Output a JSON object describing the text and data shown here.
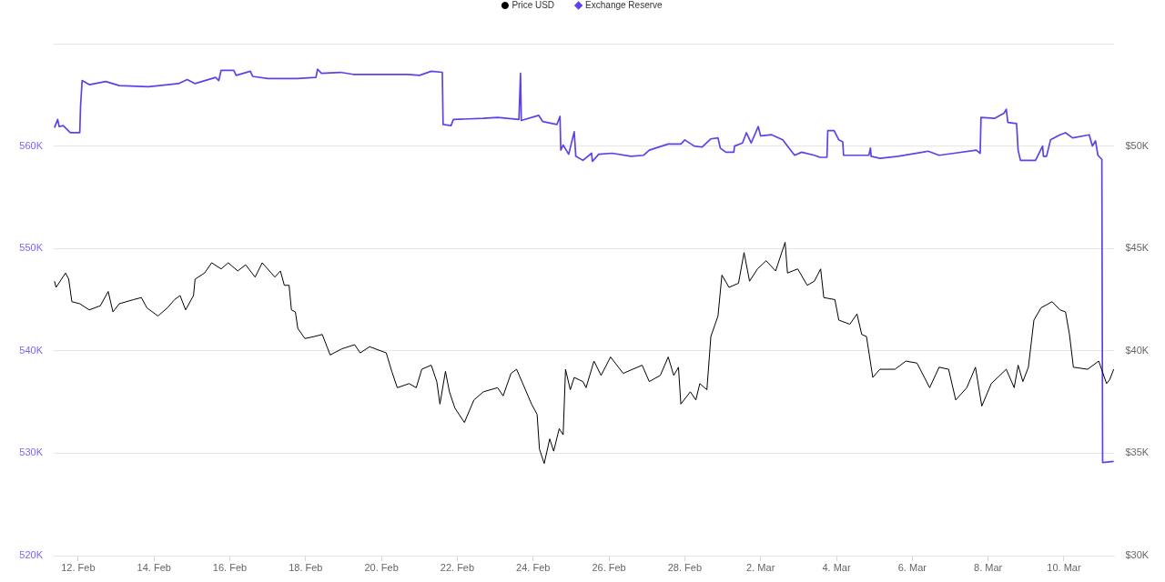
{
  "chart_data": {
    "type": "line",
    "legend": "top",
    "grid": "y",
    "xlim": [
      "--02-11T08:30",
      "--03-11T08:00"
    ],
    "xticks": [
      {
        "value": "--02-12",
        "label": "12. Feb"
      },
      {
        "value": "--02-14",
        "label": "14. Feb"
      },
      {
        "value": "--02-16",
        "label": "16. Feb"
      },
      {
        "value": "--02-18",
        "label": "18. Feb"
      },
      {
        "value": "--02-20",
        "label": "20. Feb"
      },
      {
        "value": "--02-22",
        "label": "22. Feb"
      },
      {
        "value": "--02-24",
        "label": "24. Feb"
      },
      {
        "value": "--02-26",
        "label": "26. Feb"
      },
      {
        "value": "--02-28",
        "label": "28. Feb"
      },
      {
        "value": "--03-02",
        "label": "2. Mar"
      },
      {
        "value": "--03-04",
        "label": "4. Mar"
      },
      {
        "value": "--03-06",
        "label": "6. Mar"
      },
      {
        "value": "--03-08",
        "label": "8. Mar"
      },
      {
        "value": "--03-10",
        "label": "10. Mar"
      }
    ],
    "ylim": [
      520000,
      570000
    ],
    "yticks": [
      {
        "value": 520000,
        "label": "520K"
      },
      {
        "value": 530000,
        "label": "530K"
      },
      {
        "value": 540000,
        "label": "540K"
      },
      {
        "value": 550000,
        "label": "550K"
      },
      {
        "value": 560000,
        "label": "560K"
      },
      {
        "value": 570000,
        "label": null
      }
    ],
    "y2lim": [
      30000,
      55000
    ],
    "y2ticks": [
      {
        "value": 30000,
        "label": "$30K"
      },
      {
        "value": 35000,
        "label": "$35K"
      },
      {
        "value": 40000,
        "label": "$40K"
      },
      {
        "value": 45000,
        "label": "$45K"
      },
      {
        "value": 50000,
        "label": "$50K"
      },
      {
        "value": 55000,
        "label": null
      }
    ],
    "series": [
      {
        "name": "Price USD",
        "color": "#000000",
        "axis": "y2",
        "x": [
          "--02-11T09:00",
          "--02-11T10:00",
          "--02-11T16:00",
          "--02-11T18:00",
          "--02-11T20:00",
          "--02-12T01:00",
          "--02-12T07:00",
          "--02-12T14:00",
          "--02-12T19:00",
          "--02-12T22:00",
          "--02-13T02:00",
          "--02-13T11:00",
          "--02-13T16:00",
          "--02-13T19:30",
          "--02-14T02:30",
          "--02-14T08:30",
          "--02-14T13:00",
          "--02-14T16:30",
          "--02-14T20:00",
          "--02-15T01:00",
          "--02-15T02:00",
          "--02-15T08:00",
          "--02-15T12:30",
          "--02-15T18:30",
          "--02-15T23:00",
          "--02-16T05:00",
          "--02-16T10:00",
          "--02-16T16:00",
          "--02-16T20:30",
          "--02-17T04:30",
          "--02-17T08:00",
          "--02-17T10:30",
          "--02-17T13:30",
          "--02-17T15:00",
          "--02-17T17:30",
          "--02-17T19:00",
          "--02-17T23:30",
          "--02-18T05:30",
          "--02-18T10:30",
          "--02-18T13:30",
          "--02-18T15:30",
          "--02-18T23:00",
          "--02-19T07:00",
          "--02-19T10:30",
          "--02-19T16:30",
          "--02-20T03:00",
          "--02-20T06:30",
          "--02-20T10:00",
          "--02-20T17:30",
          "--02-20T22:00",
          "--02-21T01:30",
          "--02-21T07:30",
          "--02-21T11:00",
          "--02-21T13:00",
          "--02-21T16:30",
          "--02-21T19:00",
          "--02-21T22:30",
          "--02-22T04:30",
          "--02-22T10:30",
          "--02-22T16:30",
          "--02-23T01:30",
          "--02-23T05:00",
          "--02-23T10:00",
          "--02-23T13:30",
          "--02-23T18:00",
          "--02-23T23:00",
          "--02-24T02:30",
          "--02-24T04:00",
          "--02-24T07:00",
          "--02-24T10:30",
          "--02-24T13:00",
          "--02-24T16:30",
          "--02-24T19:00",
          "--02-24T20:30",
          "--02-24T23:30",
          "--02-25T02:00",
          "--02-25T07:30",
          "--02-25T09:30",
          "--02-25T14:30",
          "--02-25T19:00",
          "--02-26T01:00",
          "--02-26T09:00",
          "--02-26T21:00",
          "--02-27T01:30",
          "--02-27T08:30",
          "--02-27T13:30",
          "--02-27T17:00",
          "--02-27T20:00",
          "--02-27T21:30",
          "--02-28T03:30",
          "--02-28T07:00",
          "--02-28T09:30",
          "--02-28T14:00",
          "--02-28T16:30",
          "--02-28T21:00",
          "--02-28T23:30",
          "--03-01T04:00",
          "--03-01T10:00",
          "--03-01T13:30",
          "--03-01T17:00",
          "--03-01T22:00",
          "--03-02T03:30",
          "--03-02T09:30",
          "--03-02T15:30",
          "--03-02T17:00",
          "--03-02T23:30",
          "--03-03T05:30",
          "--03-03T10:00",
          "--03-03T14:00",
          "--03-03T16:00",
          "--03-03T23:00",
          "--03-04T01:30",
          "--03-04T08:30",
          "--03-04T13:00",
          "--03-04T16:00",
          "--03-04T19:00",
          "--03-04T23:00",
          "--03-05T03:30",
          "--03-05T13:00",
          "--03-05T20:00",
          "--03-06T03:00",
          "--03-06T11:00",
          "--03-06T17:00",
          "--03-06T23:00",
          "--03-07T03:30",
          "--03-07T10:30",
          "--03-07T16:00",
          "--03-07T20:00",
          "--03-08T02:00",
          "--03-08T11:30",
          "--03-08T16:30",
          "--03-08T19:00",
          "--03-08T22:00",
          "--03-09T01:30",
          "--03-09T05:00",
          "--03-09T09:30",
          "--03-09T16:30",
          "--03-09T21:30",
          "--03-10T01:00",
          "--03-10T03:30",
          "--03-10T06:00",
          "--03-10T15:00",
          "--03-10T22:00",
          "--03-11T03:00",
          "--03-11T05:00",
          "--03-11T07:30"
        ],
        "values": [
          43400,
          43100,
          43800,
          43500,
          42400,
          42300,
          42000,
          42200,
          42900,
          41900,
          42300,
          42500,
          42600,
          42100,
          41700,
          42100,
          42500,
          42700,
          42000,
          42700,
          43500,
          43800,
          44300,
          44000,
          44300,
          43900,
          44200,
          43600,
          44300,
          43600,
          43900,
          43200,
          43200,
          42000,
          41900,
          41100,
          40600,
          40700,
          40800,
          40200,
          39800,
          40100,
          40300,
          39900,
          40200,
          39900,
          39000,
          38200,
          38400,
          38200,
          39100,
          39300,
          38500,
          37400,
          39000,
          38000,
          37200,
          36500,
          37600,
          38000,
          38200,
          37800,
          38900,
          39100,
          38300,
          37400,
          36900,
          35200,
          34500,
          35700,
          35100,
          36200,
          35900,
          39100,
          38100,
          38700,
          38500,
          38200,
          39500,
          38800,
          39700,
          38900,
          39300,
          38500,
          38800,
          39700,
          38800,
          39200,
          37400,
          38000,
          37600,
          38400,
          38100,
          40700,
          41700,
          43700,
          43100,
          43300,
          44800,
          43400,
          44000,
          44400,
          43900,
          45300,
          43800,
          44000,
          43200,
          43400,
          44000,
          42600,
          42500,
          41500,
          41300,
          41800,
          40800,
          40700,
          38700,
          39100,
          39100,
          39500,
          39400,
          38200,
          39200,
          39100,
          37600,
          38200,
          39200,
          37300,
          38400,
          39100,
          38200,
          39300,
          38500,
          39200,
          41500,
          42100,
          42400,
          42000,
          41900,
          40800,
          39200,
          39100,
          39500,
          38400,
          38600,
          39100
        ]
      },
      {
        "name": "Exchange Reserve",
        "color": "#5a44e8",
        "axis": "y",
        "x": [
          "--02-11T09:00",
          "--02-11T11:00",
          "--02-11T12:00",
          "--02-11T14:30",
          "--02-11T19:00",
          "--02-12T01:00",
          "--02-12T01:30",
          "--02-12T02:30",
          "--02-12T07:00",
          "--02-12T17:30",
          "--02-13T02:00",
          "--02-13T20:30",
          "--02-14T15:30",
          "--02-14T21:00",
          "--02-15T02:00",
          "--02-15T15:00",
          "--02-15T17:00",
          "--02-15T18:30",
          "--02-16T02:30",
          "--02-16T04:00",
          "--02-16T13:00",
          "--02-16T14:30",
          "--02-17T00:00",
          "--02-17T18:30",
          "--02-18T06:30",
          "--02-18T07:30",
          "--02-18T10:00",
          "--02-18T22:00",
          "--02-19T06:00",
          "--02-20T17:00",
          "--02-21T00:00",
          "--02-21T07:30",
          "--02-21T14:30",
          "--02-21T15:00",
          "--02-21T20:00",
          "--02-21T21:30",
          "--02-22T16:30",
          "--02-23T01:30",
          "--02-23T15:00",
          "--02-23T16:00",
          "--02-23T16:30",
          "--02-24T03:30",
          "--02-24T06:00",
          "--02-24T15:00",
          "--02-24T17:00",
          "--02-24T17:30",
          "--02-24T19:00",
          "--02-24T22:30",
          "--02-25T02:00",
          "--02-25T03:00",
          "--02-25T07:30",
          "--02-25T13:00",
          "--02-25T13:30",
          "--02-25T17:30",
          "--02-26T02:00",
          "--02-26T14:00",
          "--02-26T22:00",
          "--02-27T01:30",
          "--02-27T13:30",
          "--02-27T21:30",
          "--02-28T00:00",
          "--02-28T06:00",
          "--02-28T11:00",
          "--02-28T16:30",
          "--02-28T21:00",
          "--02-28T22:30",
          "--03-01T02:00",
          "--03-01T07:00",
          "--03-01T07:30",
          "--03-01T12:30",
          "--03-01T15:00",
          "--03-01T18:00",
          "--03-01T22:30",
          "--03-02T00:00",
          "--03-02T07:00",
          "--03-02T14:00",
          "--03-02T17:30",
          "--03-02T21:30",
          "--03-03T02:00",
          "--03-03T10:00",
          "--03-03T13:30",
          "--03-03T18:00",
          "--03-03T18:30",
          "--03-03T22:30",
          "--03-04T01:30",
          "--03-04T04:00",
          "--03-04T04:30",
          "--03-04T20:30",
          "--03-04T21:30",
          "--03-04T22:00",
          "--03-05T03:30",
          "--03-05T15:00",
          "--03-06T10:00",
          "--03-06T17:00",
          "--03-07T02:30",
          "--03-07T16:30",
          "--03-07T19:00",
          "--03-07T19:30",
          "--03-08T04:00",
          "--03-08T10:00",
          "--03-08T11:30",
          "--03-08T12:30",
          "--03-08T18:00",
          "--03-08T19:00",
          "--03-08T20:30",
          "--03-09T06:00",
          "--03-09T10:30",
          "--03-09T11:00",
          "--03-09T13:00",
          "--03-09T15:30",
          "--03-09T21:30",
          "--03-10T01:00",
          "--03-10T05:30",
          "--03-10T16:00",
          "--03-10T18:00",
          "--03-10T20:00",
          "--03-10T21:30",
          "--03-11T00:00",
          "--03-11T00:30",
          "--03-11T07:30"
        ],
        "values": [
          561800,
          562600,
          561900,
          562000,
          561300,
          561300,
          563900,
          566400,
          566000,
          566300,
          565900,
          565800,
          566100,
          566500,
          566100,
          566700,
          566400,
          567400,
          567400,
          566900,
          567300,
          566800,
          566600,
          566600,
          566700,
          567500,
          567100,
          567200,
          567000,
          567000,
          566900,
          567300,
          567200,
          562100,
          562000,
          562600,
          562700,
          562800,
          562600,
          567100,
          562500,
          563000,
          562400,
          562100,
          562900,
          559600,
          560100,
          559200,
          561400,
          559000,
          558600,
          559300,
          558500,
          559200,
          559300,
          559000,
          559100,
          559600,
          560200,
          560200,
          560600,
          560000,
          559900,
          560700,
          560800,
          559800,
          559400,
          559400,
          560000,
          560300,
          561300,
          560300,
          561900,
          561000,
          561100,
          560600,
          559900,
          559100,
          559400,
          559100,
          558900,
          558900,
          561500,
          561500,
          560600,
          560400,
          559100,
          559100,
          559800,
          559000,
          558800,
          559000,
          559500,
          559100,
          559300,
          559600,
          559300,
          562800,
          562700,
          563200,
          563600,
          562300,
          562200,
          559600,
          558600,
          558600,
          560000,
          559000,
          559000,
          560600,
          561100,
          561300,
          560800,
          561100,
          560000,
          560500,
          559100,
          558700,
          529100,
          529200
        ]
      }
    ]
  }
}
